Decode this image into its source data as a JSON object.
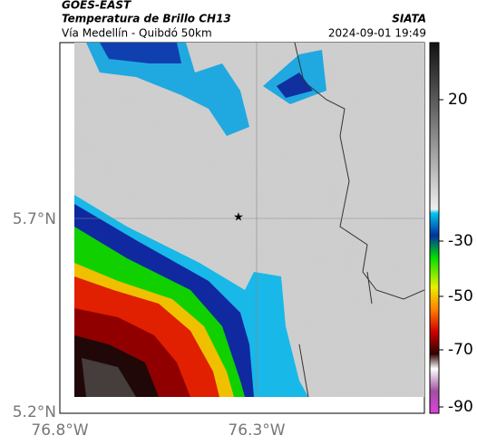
{
  "header": {
    "source": "GOES-EAST",
    "title": "Temperatura de Brillo CH13",
    "route": "Vía Medellín - Quibdó 50km",
    "brand": "SIATA",
    "timestamp": "2024-09-01 19:49"
  },
  "map": {
    "lat_labels": [
      "5.7°N",
      "5.2°N"
    ],
    "lon_labels": [
      "76.8°W",
      "76.3°W"
    ]
  },
  "colorbar": {
    "ticks": [
      20,
      -30,
      -50,
      -70,
      -90
    ]
  }
}
